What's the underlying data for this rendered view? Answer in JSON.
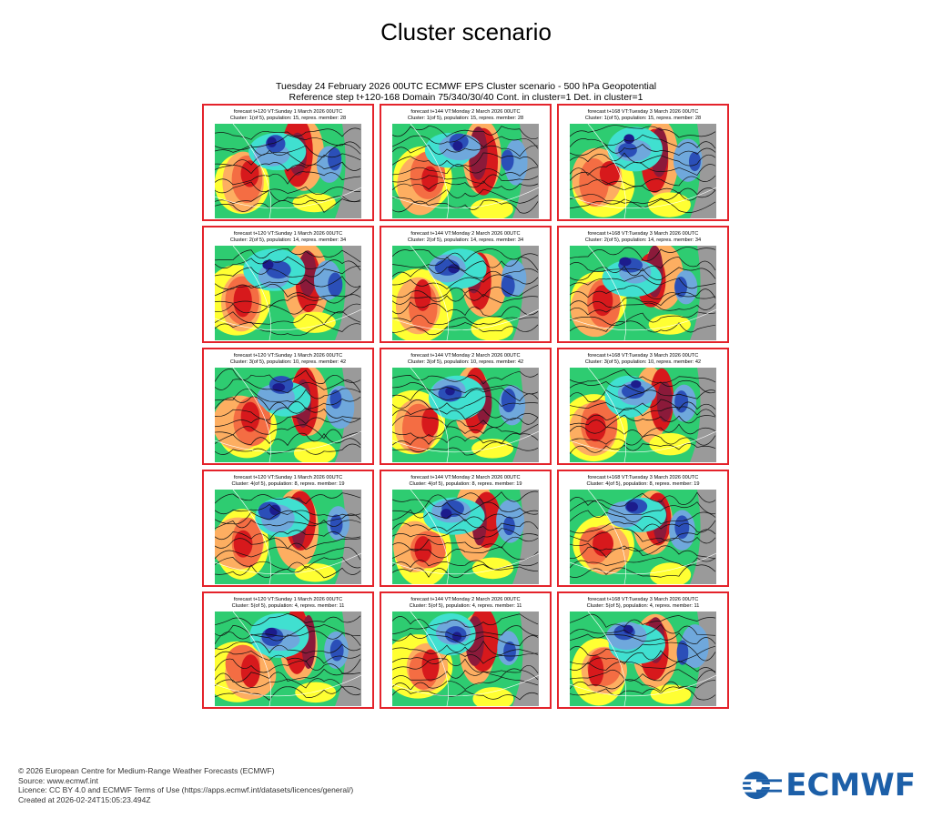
{
  "page": {
    "title": "Cluster scenario",
    "subtitle_line1": "Tuesday 24 February 2026 00UTC ECMWF EPS Cluster scenario - 500 hPa Geopotential",
    "subtitle_line2": "Reference step t+120-168 Domain 75/340/30/40 Cont. in cluster=1 Det. in cluster=1"
  },
  "panels": [
    {
      "line1": "forecast t+120 VT:Sunday 1 March 2026 00UTC",
      "line2": "Cluster: 1(of 5), population: 15, repres. member: 28"
    },
    {
      "line1": "forecast t+144 VT:Monday 2 March 2026 00UTC",
      "line2": "Cluster: 1(of 5), population: 15, repres. member: 28"
    },
    {
      "line1": "forecast t+168 VT:Tuesday 3 March 2026 00UTC",
      "line2": "Cluster: 1(of 5), population: 15, repres. member: 28"
    },
    {
      "line1": "forecast t+120 VT:Sunday 1 March 2026 00UTC",
      "line2": "Cluster: 2(of 5), population: 14, repres. member: 34"
    },
    {
      "line1": "forecast t+144 VT:Monday 2 March 2026 00UTC",
      "line2": "Cluster: 2(of 5), population: 14, repres. member: 34"
    },
    {
      "line1": "forecast t+168 VT:Tuesday 3 March 2026 00UTC",
      "line2": "Cluster: 2(of 5), population: 14, repres. member: 34"
    },
    {
      "line1": "forecast t+120 VT:Sunday 1 March 2026 00UTC",
      "line2": "Cluster: 3(of 5), population: 10, repres. member: 42"
    },
    {
      "line1": "forecast t+144 VT:Monday 2 March 2026 00UTC",
      "line2": "Cluster: 3(of 5), population: 10, repres. member: 42"
    },
    {
      "line1": "forecast t+168 VT:Tuesday 3 March 2026 00UTC",
      "line2": "Cluster: 3(of 5), population: 10, repres. member: 42"
    },
    {
      "line1": "forecast t+120 VT:Sunday 1 March 2026 00UTC",
      "line2": "Cluster: 4(of 5), population: 8, repres. member: 19"
    },
    {
      "line1": "forecast t+144 VT:Monday 2 March 2026 00UTC",
      "line2": "Cluster: 4(of 5), population: 8, repres. member: 19"
    },
    {
      "line1": "forecast t+168 VT:Tuesday 3 March 2026 00UTC",
      "line2": "Cluster: 4(of 5), population: 8, repres. member: 19"
    },
    {
      "line1": "forecast t+120 VT:Sunday 1 March 2026 00UTC",
      "line2": "Cluster: 5(of 5), population: 4, repres. member: 11"
    },
    {
      "line1": "forecast t+144 VT:Monday 2 March 2026 00UTC",
      "line2": "Cluster: 5(of 5), population: 4, repres. member: 11"
    },
    {
      "line1": "forecast t+168 VT:Tuesday 3 March 2026 00UTC",
      "line2": "Cluster: 5(of 5), population: 4, repres. member: 11"
    }
  ],
  "footer": {
    "copyright": "© 2026 European Centre for Medium-Range Weather Forecasts (ECMWF)",
    "source": "Source: www.ecmwf.int",
    "licence": "Licence: CC BY 4.0 and ECMWF Terms of Use (https://apps.ecmwf.int/datasets/licences/general/)",
    "created": "Created at 2026-02-24T15:05:23.494Z"
  },
  "logo": {
    "text": "ECMWF",
    "color": "#1c5fa8"
  },
  "colors": {
    "panel_border": "#e4232b",
    "anomaly_palette": [
      "#8b1a3a",
      "#d7191c",
      "#f46d43",
      "#fdae61",
      "#ffff33",
      "#9acd32",
      "#2ecc71",
      "#40e0d0",
      "#6fa8dc",
      "#2b4fb8",
      "#1c1c8c",
      "#9a9a9a"
    ]
  }
}
